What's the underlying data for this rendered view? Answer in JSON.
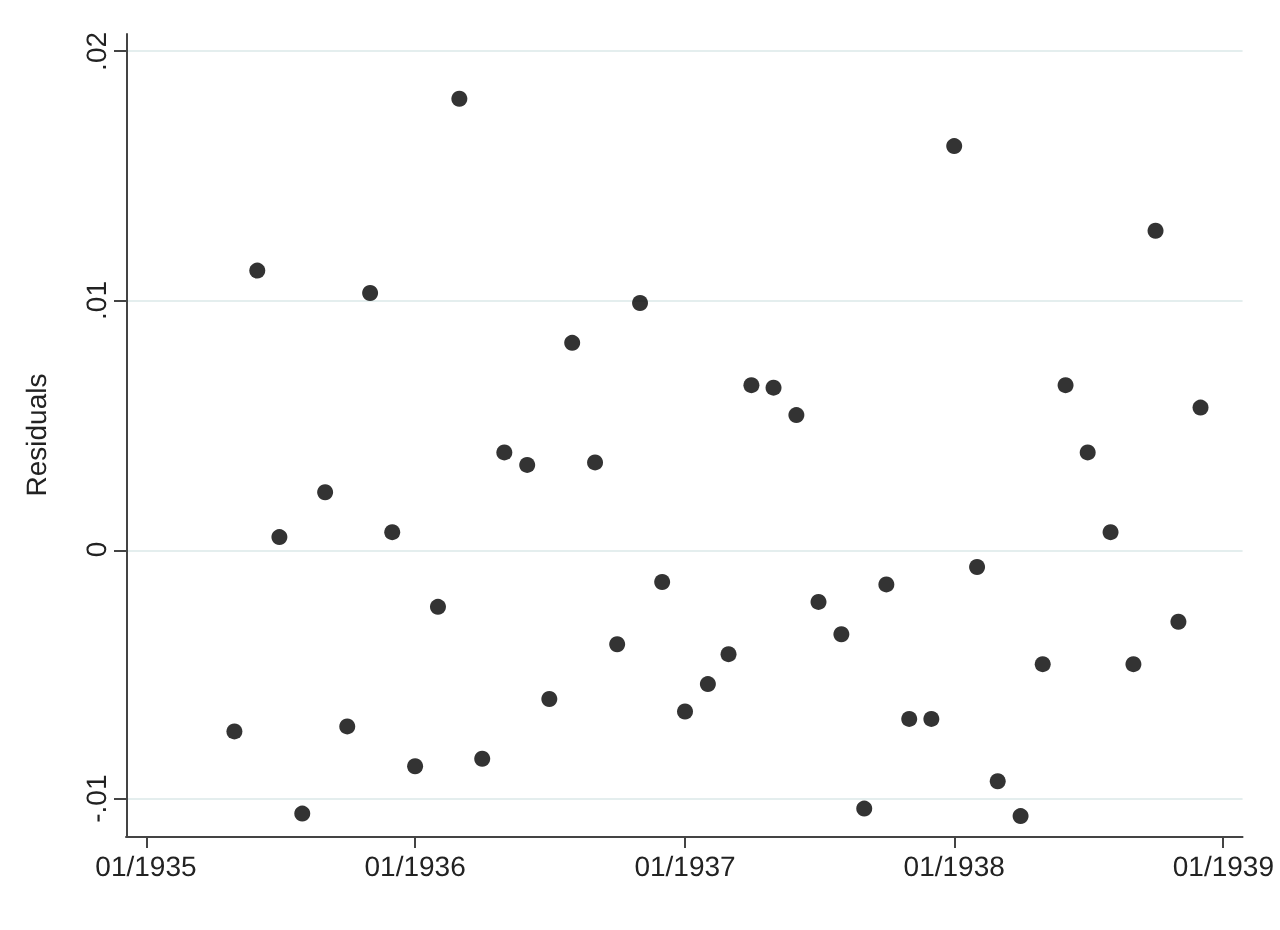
{
  "chart_data": {
    "type": "scatter",
    "ylabel": "Residuals",
    "x": [
      "1935-05",
      "1935-06",
      "1935-07",
      "1935-08",
      "1935-09",
      "1935-10",
      "1935-11",
      "1935-12",
      "1936-01",
      "1936-02",
      "1936-03",
      "1936-04",
      "1936-05",
      "1936-06",
      "1936-07",
      "1936-08",
      "1936-09",
      "1936-10",
      "1936-11",
      "1936-12",
      "1937-01",
      "1937-02",
      "1937-03",
      "1937-04",
      "1937-05",
      "1937-06",
      "1937-07",
      "1937-08",
      "1937-09",
      "1937-10",
      "1937-11",
      "1937-12",
      "1938-01",
      "1938-02",
      "1938-03",
      "1938-04",
      "1938-05",
      "1938-06",
      "1938-07",
      "1938-08",
      "1938-09",
      "1938-10",
      "1938-11",
      "1938-12"
    ],
    "series": [
      {
        "color": "#000000",
        "values": [
          -0.0073,
          0.0112,
          0.0005,
          -0.0106,
          0.0023,
          -0.0071,
          0.0103,
          0.0007,
          -0.0087,
          -0.0023,
          0.0181,
          -0.0084,
          0.0039,
          0.0034,
          -0.006,
          0.0083,
          0.0035,
          -0.0038,
          0.0099,
          -0.0013,
          -0.0065,
          -0.0054,
          -0.0042,
          0.0066,
          0.0065,
          0.0054,
          -0.0021,
          -0.0034,
          -0.0104,
          -0.0014,
          -0.0068,
          -0.0068,
          0.0162,
          -0.0007,
          -0.0093,
          -0.0107,
          -0.0046,
          0.0066,
          0.0039,
          0.0007,
          -0.0046,
          0.0128,
          -0.0029,
          0.0057
        ]
      }
    ],
    "xlim": [
      "1934-12-05",
      "1939-01-27"
    ],
    "xticks": [
      {
        "value": "1935-01",
        "label": "01/1935"
      },
      {
        "value": "1936-01",
        "label": "01/1936"
      },
      {
        "value": "1937-01",
        "label": "01/1937"
      },
      {
        "value": "1938-01",
        "label": "01/1938"
      },
      {
        "value": "1939-01",
        "label": "01/1939"
      }
    ],
    "ylim": [
      -0.0115,
      0.0207
    ],
    "yticks": [
      {
        "value": -0.01,
        "label": "-.01"
      },
      {
        "value": 0,
        "label": "0"
      },
      {
        "value": 0.01,
        "label": ".01"
      },
      {
        "value": 0.02,
        "label": ".02"
      }
    ],
    "grid": "y",
    "marker": "circle"
  }
}
